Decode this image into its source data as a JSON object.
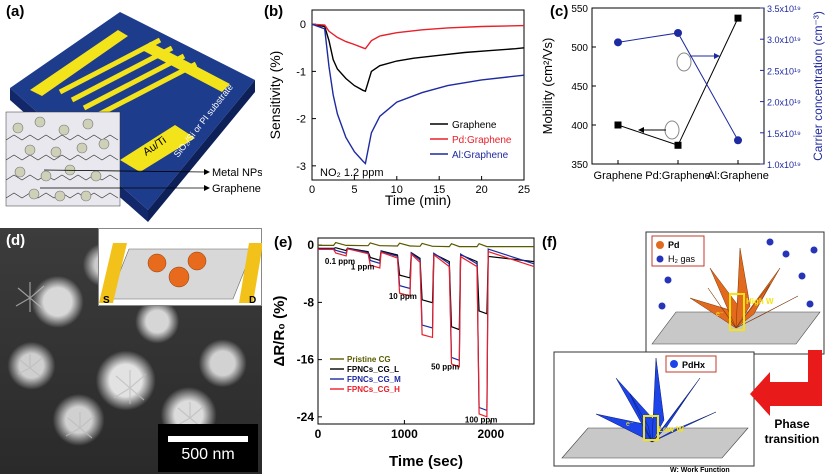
{
  "panels": {
    "a": {
      "label": "(a)",
      "electrode_label": "Au/Ti",
      "substrate_label": "SiO₂/Si or PI substrate",
      "callouts": [
        "Metal NPs",
        "Graphene"
      ]
    },
    "b": {
      "label": "(b)"
    },
    "c": {
      "label": "(c)"
    },
    "d": {
      "label": "(d)",
      "inset_left": "S",
      "inset_right": "D",
      "scale_bar": "500 nm"
    },
    "e": {
      "label": "(e)"
    },
    "f": {
      "label": "(f)",
      "legend_pd": "Pd",
      "legend_h2": "H₂ gas",
      "high_w": "High W",
      "low_w": "Low W",
      "pdhx": "PdHx",
      "arrow_text_1": "Phase",
      "arrow_text_2": "transition",
      "footnote": "W: Work Function",
      "electron": "e⁻"
    }
  },
  "chart_data": [
    {
      "id": "b",
      "type": "line",
      "xlabel": "Time (min)",
      "ylabel": "Sensitivity (%)",
      "xlim": [
        0,
        25
      ],
      "ylim": [
        -3.3,
        0.3
      ],
      "xticks": [
        0,
        5,
        10,
        15,
        20,
        25
      ],
      "yticks": [
        0,
        -1,
        -2,
        -3
      ],
      "annotation": "NO₂ 1.2 ppm",
      "legend_position": "right",
      "series": [
        {
          "name": "Graphene",
          "color": "#000000",
          "x": [
            0,
            1.5,
            2,
            2.5,
            3,
            4,
            5,
            6,
            6.3,
            7,
            8,
            10,
            12,
            15,
            18,
            21,
            24,
            25
          ],
          "y": [
            0,
            -0.05,
            -0.35,
            -0.75,
            -0.95,
            -1.15,
            -1.3,
            -1.4,
            -1.42,
            -1.0,
            -0.88,
            -0.78,
            -0.72,
            -0.66,
            -0.6,
            -0.56,
            -0.52,
            -0.5
          ]
        },
        {
          "name": "Pd:Graphene",
          "color": "#e8202a",
          "x": [
            0,
            1.5,
            2,
            3,
            4,
            5,
            6,
            6.3,
            7,
            8,
            10,
            13,
            16,
            20,
            25
          ],
          "y": [
            0,
            -0.02,
            -0.15,
            -0.28,
            -0.37,
            -0.43,
            -0.5,
            -0.52,
            -0.35,
            -0.25,
            -0.18,
            -0.12,
            -0.08,
            -0.05,
            -0.03
          ]
        },
        {
          "name": "Al:Graphene",
          "color": "#1e2aa0",
          "x": [
            0,
            1.5,
            2,
            2.5,
            3,
            4,
            5,
            6,
            6.3,
            7,
            8,
            10,
            13,
            16,
            20,
            25
          ],
          "y": [
            0,
            -0.1,
            -0.9,
            -1.5,
            -1.9,
            -2.4,
            -2.7,
            -2.9,
            -2.95,
            -2.3,
            -1.95,
            -1.65,
            -1.45,
            -1.3,
            -1.18,
            -1.08
          ]
        }
      ]
    },
    {
      "id": "c",
      "type": "line",
      "categories": [
        "Graphene",
        "Pd:Graphene",
        "Al:Graphene"
      ],
      "ylabel": "Mobility (cm²/Vs)",
      "y2label": "Carrier concentration (cm⁻³)",
      "ylim": [
        350,
        550
      ],
      "yticks": [
        350,
        400,
        450,
        500,
        550
      ],
      "y2lim": [
        1e+19,
        3.5e+19
      ],
      "y2ticks": [
        "1.0x10¹⁹",
        "1.5x10¹⁹",
        "2.0x10¹⁹",
        "2.5x10¹⁹",
        "3.0x10¹⁹",
        "3.5x10¹⁹"
      ],
      "y2tick_values": [
        1e+19,
        1.5e+19,
        2e+19,
        2.5e+19,
        3e+19,
        3.5e+19
      ],
      "series": [
        {
          "name": "mobility",
          "axis": "left",
          "color": "#000000",
          "marker": "square",
          "values": [
            400,
            374,
            537
          ]
        },
        {
          "name": "carrier",
          "axis": "right",
          "color": "#1e2aa0",
          "marker": "circle",
          "values": [
            2.95e+19,
            3.1e+19,
            1.38e+19
          ]
        }
      ]
    },
    {
      "id": "e",
      "type": "line",
      "xlabel": "Time (sec)",
      "ylabel": "ΔR/R₀ (%)",
      "xlim": [
        0,
        2500
      ],
      "ylim": [
        -25,
        1
      ],
      "xticks": [
        0,
        1000,
        2000
      ],
      "yticks": [
        0,
        -8,
        -16,
        -24
      ],
      "legend_position": "bottom-left",
      "annotations": [
        {
          "text": "0.1 ppm",
          "x": 80,
          "y": -2.6
        },
        {
          "text": "1 ppm",
          "x": 380,
          "y": -3.4
        },
        {
          "text": "10 ppm",
          "x": 820,
          "y": -7.5
        },
        {
          "text": "50 ppm",
          "x": 1310,
          "y": -17.4
        },
        {
          "text": "100 ppm",
          "x": 1700,
          "y": -24.8
        }
      ],
      "pulses": [
        {
          "start": 180,
          "end": 330
        },
        {
          "start": 580,
          "end": 720
        },
        {
          "start": 920,
          "end": 1070
        },
        {
          "start": 1180,
          "end": 1330
        },
        {
          "start": 1520,
          "end": 1640
        },
        {
          "start": 1840,
          "end": 1960
        }
      ],
      "series": [
        {
          "name": "Pristine CG",
          "color": "#5a5a00",
          "baseline": -0.2,
          "drops": [
            0,
            0,
            0,
            0,
            0,
            0
          ]
        },
        {
          "name": "FPNCs_CG_L",
          "color": "#000000",
          "baseline": -2.3,
          "drops": [
            0.3,
            1.2,
            3.2,
            6.2,
            9.5,
            7.3
          ]
        },
        {
          "name": "FPNCs_CG_M",
          "color": "#1e2aa0",
          "baseline": -2.6,
          "drops": [
            0.6,
            1.5,
            4.5,
            9.5,
            13.5,
            20.5
          ]
        },
        {
          "name": "FPNCs_CG_H",
          "color": "#e8202a",
          "baseline": -3.0,
          "drops": [
            0.9,
            2.0,
            5.3,
            10.5,
            14.0,
            21.0
          ]
        }
      ]
    }
  ]
}
